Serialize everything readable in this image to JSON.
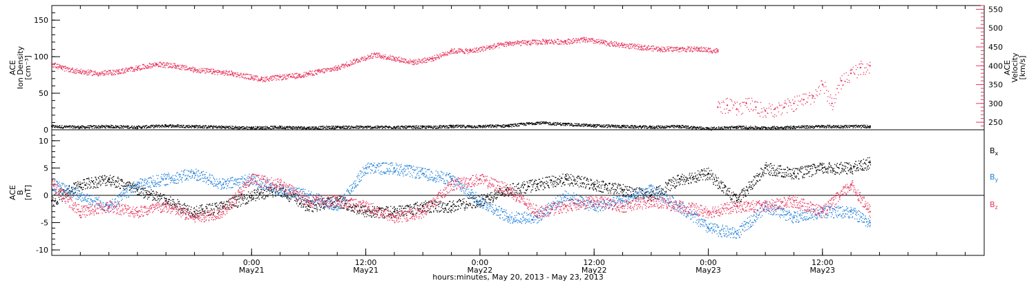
{
  "chart_data": [
    {
      "type": "scatter",
      "panel": "top",
      "ylabel_lines": [
        "ACE",
        "Ion Density",
        "[cm⁻³]"
      ],
      "ylim": [
        0,
        170
      ],
      "yticks": [
        0,
        50,
        100,
        150
      ],
      "y2label_lines": [
        "ACE",
        "Velocity",
        "[km/s]"
      ],
      "y2lim": [
        230,
        560
      ],
      "y2ticks": [
        250,
        300,
        350,
        400,
        450,
        500,
        550
      ],
      "colors": {
        "density": "#000000",
        "velocity": "#e8325a"
      },
      "series": [
        {
          "key": "density",
          "axis": "left",
          "x_hours": [
            0,
            3,
            6,
            9,
            12,
            15,
            18,
            21,
            24,
            27,
            30,
            33,
            36,
            39,
            42,
            45,
            48,
            51,
            54,
            57,
            60,
            63,
            66,
            69,
            72,
            75,
            78,
            81,
            84,
            86
          ],
          "values": [
            5,
            4,
            5,
            4,
            6,
            5,
            4,
            3,
            4,
            3,
            4,
            4,
            4,
            4,
            5,
            5,
            6,
            10,
            8,
            6,
            5,
            4,
            5,
            2,
            4,
            3,
            4,
            5,
            5,
            5
          ]
        },
        {
          "key": "velocity",
          "axis": "right",
          "x_hours": [
            0,
            1,
            3,
            5,
            7,
            9,
            11,
            13,
            15,
            17,
            19,
            21,
            22,
            24,
            26,
            27,
            28,
            30,
            32,
            34,
            36,
            38,
            40,
            42,
            44,
            46,
            48,
            50,
            52,
            54,
            56,
            58,
            60,
            62,
            64,
            66,
            68,
            70
          ],
          "values": [
            405,
            395,
            385,
            380,
            385,
            395,
            405,
            400,
            390,
            385,
            380,
            370,
            365,
            370,
            375,
            380,
            385,
            395,
            415,
            430,
            420,
            410,
            420,
            440,
            440,
            450,
            460,
            462,
            465,
            465,
            470,
            462,
            455,
            450,
            445,
            445,
            445,
            440
          ]
        },
        {
          "key": "velocity_scatter",
          "axis": "right",
          "x_hours": [
            70,
            71,
            72,
            73,
            74,
            75,
            76,
            77,
            78,
            79,
            80,
            81,
            82,
            83,
            84,
            85,
            86
          ],
          "values": [
            290,
            295,
            285,
            300,
            290,
            280,
            285,
            290,
            300,
            310,
            320,
            350,
            300,
            360,
            380,
            395,
            400
          ]
        }
      ]
    },
    {
      "type": "scatter",
      "panel": "bottom",
      "ylabel_lines": [
        "ACE",
        "B",
        "[nT]"
      ],
      "ylim": [
        -11,
        12
      ],
      "yticks": [
        -10,
        -5,
        0,
        5,
        10
      ],
      "zero_line": true,
      "colors": {
        "bx": "#000000",
        "by": "#1e7fd9",
        "bz": "#e8325a"
      },
      "legend": [
        {
          "key": "bx",
          "label": "B",
          "sub": "x"
        },
        {
          "key": "by",
          "label": "B",
          "sub": "y"
        },
        {
          "key": "bz",
          "label": "B",
          "sub": "z"
        }
      ],
      "series": [
        {
          "key": "bx",
          "x_hours": [
            0,
            3,
            6,
            9,
            12,
            15,
            18,
            21,
            24,
            27,
            30,
            33,
            36,
            39,
            42,
            45,
            48,
            51,
            54,
            57,
            60,
            63,
            66,
            69,
            72,
            75,
            78,
            81,
            84,
            86
          ],
          "values": [
            -1,
            2,
            3,
            1,
            -1,
            -3,
            -2,
            0,
            1,
            -2,
            -1,
            -3,
            -3,
            -2,
            -2,
            -1,
            1,
            2,
            3,
            2,
            1,
            0,
            3,
            4,
            -1,
            5,
            4,
            5,
            5,
            6
          ]
        },
        {
          "key": "by",
          "x_hours": [
            0,
            3,
            6,
            9,
            12,
            15,
            18,
            21,
            24,
            27,
            30,
            33,
            36,
            39,
            42,
            45,
            48,
            51,
            54,
            57,
            60,
            63,
            66,
            69,
            72,
            75,
            78,
            81,
            84,
            86
          ],
          "values": [
            2,
            0,
            -2,
            2,
            3,
            4,
            2,
            3,
            1,
            0,
            -2,
            5,
            5,
            4,
            3,
            -1,
            -4,
            -4,
            0,
            -2,
            -1,
            1,
            -2,
            -6,
            -7,
            -2,
            -4,
            -3,
            -3,
            -5
          ]
        },
        {
          "key": "bz",
          "x_hours": [
            0,
            3,
            6,
            9,
            12,
            15,
            18,
            21,
            24,
            27,
            30,
            33,
            36,
            39,
            42,
            45,
            48,
            51,
            54,
            57,
            60,
            63,
            66,
            69,
            72,
            75,
            78,
            81,
            84,
            86
          ],
          "values": [
            2,
            -3,
            -2,
            -3,
            -2,
            -4,
            -3,
            3,
            2,
            -1,
            -1,
            -2,
            -4,
            -3,
            2,
            3,
            1,
            -3,
            -2,
            -1,
            -2,
            -1,
            -2,
            -3,
            -2,
            -2,
            -1,
            -3,
            2,
            -3
          ]
        }
      ]
    }
  ],
  "x_axis": {
    "start_label": "",
    "ticks": [
      {
        "hour": 21,
        "line1": "0:00",
        "line2": "May21"
      },
      {
        "hour": 33,
        "line1": "12:00",
        "line2": "May21"
      },
      {
        "hour": 45,
        "line1": "0:00",
        "line2": "May22"
      },
      {
        "hour": 57,
        "line1": "12:00",
        "line2": "May22"
      },
      {
        "hour": 69,
        "line1": "0:00",
        "line2": "May23"
      },
      {
        "hour": 81,
        "line1": "12:00",
        "line2": "May23"
      }
    ],
    "range_hours": [
      0,
      98
    ],
    "label": "hours:minutes, May 20, 2013 - May 23, 2013"
  }
}
